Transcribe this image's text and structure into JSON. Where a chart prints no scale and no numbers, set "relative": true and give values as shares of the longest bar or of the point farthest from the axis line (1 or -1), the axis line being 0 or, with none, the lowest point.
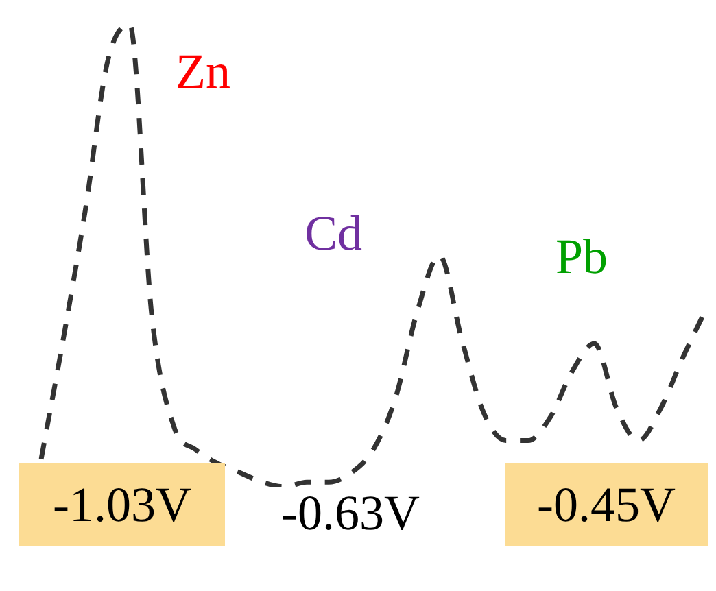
{
  "chart_data": {
    "type": "line",
    "relative": true,
    "line_style": "dashed",
    "marker": "none",
    "legend": false,
    "categories": [
      null,
      null,
      null,
      null,
      null,
      null,
      null,
      null,
      null,
      null,
      null,
      null,
      null,
      null,
      null,
      null,
      null,
      null,
      null,
      null,
      null,
      null,
      null,
      null,
      null,
      null,
      null,
      null,
      null,
      null,
      null
    ],
    "series": [
      {
        "color": "#333333",
        "values": [
          0.06,
          0.32,
          0.6,
          0.92,
          1,
          0.37,
          0.13,
          0.08,
          0.05,
          0.03,
          0.01,
          0,
          0.01,
          0.01,
          0.03,
          0.08,
          0.19,
          0.38,
          0.5,
          0.32,
          0.16,
          0.1,
          0.1,
          0.15,
          0.25,
          0.31,
          0.17,
          0.1,
          0.17,
          0.28,
          0.38
        ]
      }
    ],
    "annotations": [
      "Zn",
      "Cd",
      "Pb",
      "-1.03V",
      "-0.63V",
      "-0.45V"
    ]
  }
}
